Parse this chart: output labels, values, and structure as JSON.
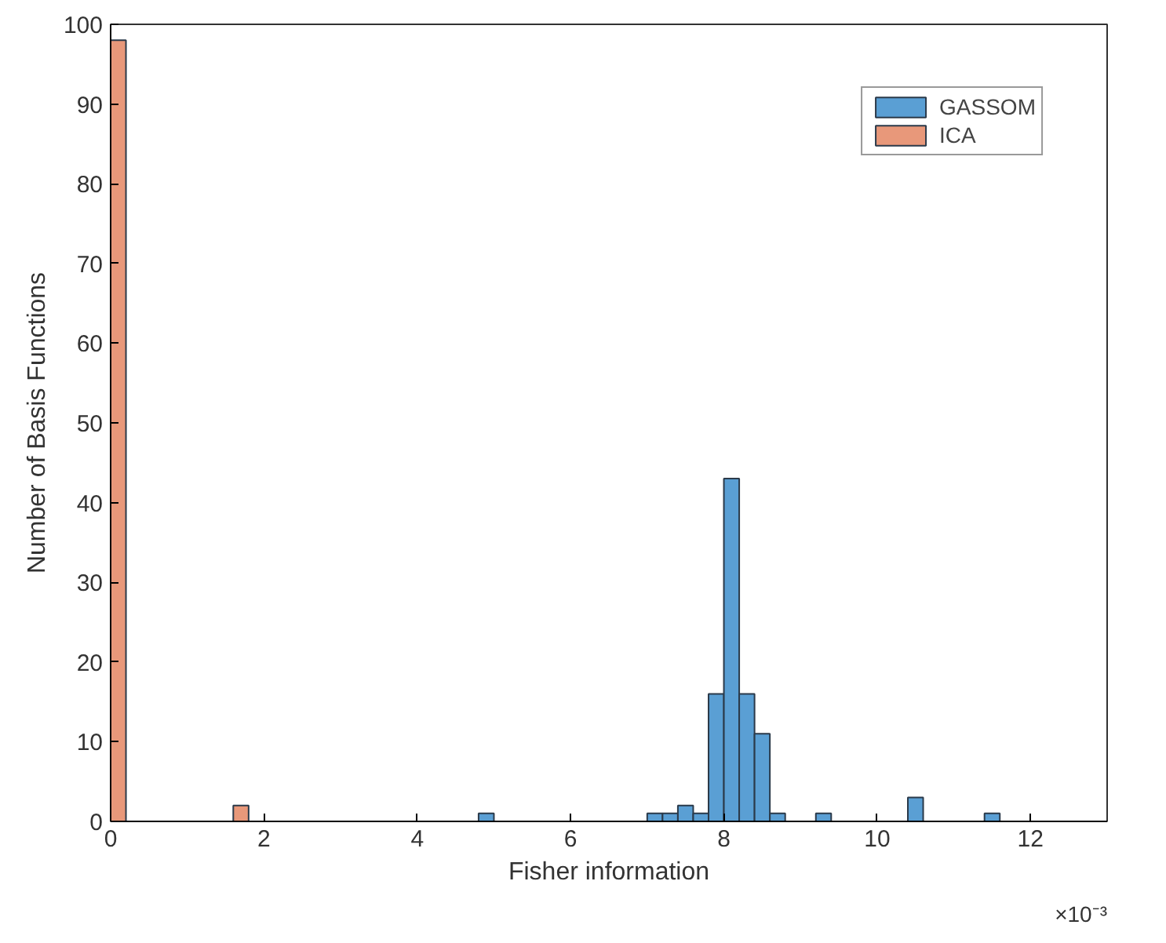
{
  "chart_data": {
    "type": "histogram",
    "xlabel": "Fisher information",
    "ylabel": "Number of Basis Functions",
    "bins": [
      0,
      0.2,
      0.4,
      0.6,
      0.8,
      1,
      1.2,
      1.4,
      1.6,
      1.8,
      2,
      2.2,
      2.4,
      2.6,
      2.8,
      3,
      3.2,
      3.4,
      3.6,
      3.8,
      4,
      4.2,
      4.4,
      4.6,
      4.8,
      5,
      5.2,
      5.4,
      5.6,
      5.8,
      6,
      6.2,
      6.4,
      6.6,
      6.8,
      7,
      7.2,
      7.4,
      7.6,
      7.8,
      8,
      8.2,
      8.4,
      8.6,
      8.8,
      9,
      9.2,
      9.4,
      9.6,
      9.8,
      10,
      10.2,
      10.4,
      10.6,
      10.8,
      11,
      11.2,
      11.4,
      11.6
    ],
    "series": [
      {
        "name": "GASSOM",
        "color": "#5a9fd4",
        "values": [
          null,
          0,
          0,
          0,
          0,
          0,
          0,
          0,
          0,
          0,
          0,
          0,
          0,
          0,
          0,
          0,
          0,
          0,
          0,
          0,
          0,
          0,
          0,
          0,
          1,
          0,
          0,
          0,
          0,
          0,
          0,
          0,
          0,
          0,
          0,
          1,
          1,
          2,
          1,
          16,
          43,
          16,
          11,
          1,
          0,
          0,
          1,
          0,
          0,
          0,
          0,
          0,
          3,
          0,
          0,
          0,
          0,
          1
        ]
      },
      {
        "name": "ICA",
        "color": "#e8987a",
        "values": [
          98,
          0,
          0,
          0,
          0,
          0,
          0,
          0,
          2,
          0,
          0,
          0,
          0,
          0,
          0,
          0,
          0,
          0,
          0,
          0,
          0,
          0,
          0,
          0,
          0,
          0,
          0,
          0,
          0,
          0,
          0,
          0,
          0,
          0,
          0,
          0,
          0,
          0,
          0,
          0,
          0,
          0,
          0,
          0,
          0,
          0,
          0,
          0,
          0,
          0,
          0,
          0,
          0,
          0,
          0,
          0,
          0,
          0
        ]
      }
    ],
    "xlim": [
      0,
      13
    ],
    "xticks": [
      0,
      2,
      4,
      6,
      8,
      10,
      12
    ],
    "ylim": [
      0,
      100
    ],
    "yticks": [
      0,
      10,
      20,
      30,
      40,
      50,
      60,
      70,
      80,
      90,
      100
    ],
    "annotations": [
      "×10⁻³"
    ],
    "legend": "top right",
    "grid": false
  }
}
